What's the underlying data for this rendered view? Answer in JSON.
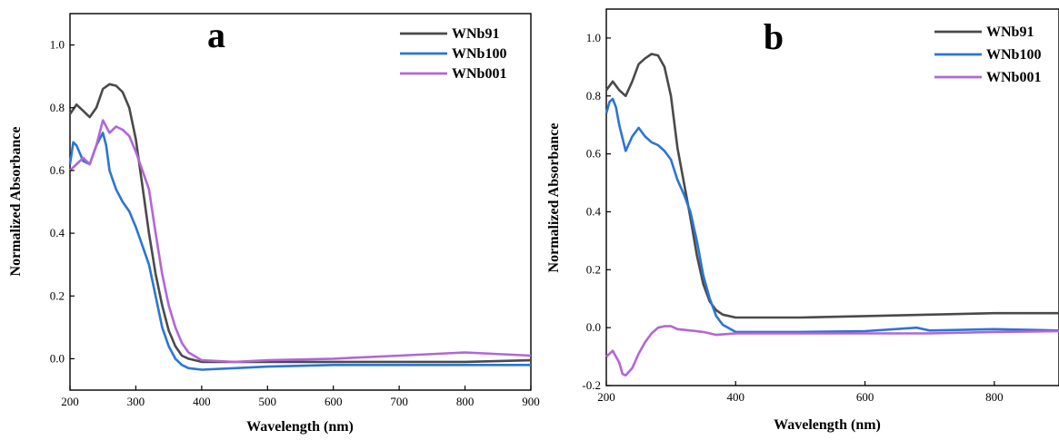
{
  "chart_data": [
    {
      "type": "line",
      "panel_label": "a",
      "xlabel": "Wavelength (nm)",
      "ylabel": "Normalized Absorbance",
      "xlim": [
        200,
        900
      ],
      "ylim": [
        -0.1,
        1.1
      ],
      "xticks": [
        200,
        300,
        400,
        500,
        600,
        700,
        800,
        900
      ],
      "yticks": [
        0.0,
        0.2,
        0.4,
        0.6,
        0.8,
        1.0
      ],
      "ytick_labels": [
        "0.0",
        "0.2",
        "0.4",
        "0.6",
        "0.8",
        "1.0"
      ],
      "grid": false,
      "legend_position": "top-right",
      "series": [
        {
          "name": "WNb91",
          "color": "#4a4a4a",
          "x": [
            200,
            210,
            220,
            230,
            240,
            250,
            260,
            270,
            280,
            290,
            300,
            310,
            320,
            330,
            340,
            350,
            360,
            370,
            380,
            400,
            450,
            500,
            600,
            700,
            800,
            900
          ],
          "y": [
            0.78,
            0.81,
            0.79,
            0.77,
            0.8,
            0.86,
            0.875,
            0.87,
            0.85,
            0.8,
            0.7,
            0.55,
            0.4,
            0.27,
            0.17,
            0.09,
            0.04,
            0.01,
            0.0,
            -0.01,
            -0.01,
            -0.01,
            -0.01,
            -0.01,
            -0.01,
            -0.005
          ]
        },
        {
          "name": "WNb100",
          "color": "#2a75d6",
          "x": [
            200,
            205,
            210,
            220,
            230,
            240,
            250,
            255,
            260,
            270,
            280,
            290,
            300,
            310,
            320,
            330,
            340,
            350,
            360,
            370,
            380,
            400,
            450,
            500,
            600,
            700,
            800,
            900
          ],
          "y": [
            0.62,
            0.69,
            0.68,
            0.63,
            0.62,
            0.68,
            0.72,
            0.68,
            0.6,
            0.54,
            0.5,
            0.47,
            0.42,
            0.36,
            0.3,
            0.2,
            0.1,
            0.04,
            0.0,
            -0.02,
            -0.03,
            -0.035,
            -0.03,
            -0.025,
            -0.02,
            -0.02,
            -0.02,
            -0.02
          ]
        },
        {
          "name": "WNb001",
          "color": "#b266d6",
          "x": [
            200,
            210,
            220,
            230,
            240,
            250,
            260,
            270,
            280,
            290,
            300,
            310,
            320,
            330,
            340,
            350,
            360,
            370,
            380,
            400,
            450,
            500,
            600,
            700,
            800,
            900
          ],
          "y": [
            0.6,
            0.62,
            0.64,
            0.62,
            0.68,
            0.76,
            0.72,
            0.74,
            0.73,
            0.71,
            0.66,
            0.6,
            0.54,
            0.4,
            0.27,
            0.17,
            0.1,
            0.05,
            0.02,
            -0.005,
            -0.01,
            -0.005,
            0.0,
            0.01,
            0.02,
            0.01
          ]
        }
      ]
    },
    {
      "type": "line",
      "panel_label": "b",
      "xlabel": "Wavelength (nm)",
      "ylabel": "Normalized Absorbance",
      "xlim": [
        200,
        900
      ],
      "ylim": [
        -0.2,
        1.1
      ],
      "xticks": [
        200,
        400,
        600,
        800
      ],
      "yticks": [
        -0.2,
        0.0,
        0.2,
        0.4,
        0.6,
        0.8,
        1.0
      ],
      "ytick_labels": [
        "-0.2",
        "0.0",
        "0.2",
        "0.4",
        "0.6",
        "0.8",
        "1.0"
      ],
      "grid": false,
      "legend_position": "top-right",
      "series": [
        {
          "name": "WNb91",
          "color": "#4a4a4a",
          "x": [
            200,
            210,
            220,
            230,
            240,
            250,
            260,
            270,
            280,
            290,
            300,
            310,
            320,
            330,
            340,
            350,
            360,
            370,
            380,
            400,
            450,
            500,
            600,
            700,
            800,
            900
          ],
          "y": [
            0.82,
            0.85,
            0.82,
            0.8,
            0.85,
            0.91,
            0.93,
            0.945,
            0.94,
            0.9,
            0.8,
            0.62,
            0.5,
            0.38,
            0.25,
            0.15,
            0.09,
            0.06,
            0.045,
            0.035,
            0.035,
            0.035,
            0.04,
            0.045,
            0.05,
            0.05
          ]
        },
        {
          "name": "WNb100",
          "color": "#2a75d6",
          "x": [
            200,
            205,
            210,
            215,
            220,
            230,
            240,
            250,
            260,
            270,
            280,
            290,
            300,
            310,
            320,
            330,
            340,
            350,
            360,
            370,
            380,
            400,
            450,
            500,
            600,
            680,
            700,
            800,
            900
          ],
          "y": [
            0.74,
            0.78,
            0.79,
            0.76,
            0.7,
            0.61,
            0.66,
            0.69,
            0.66,
            0.64,
            0.63,
            0.61,
            0.58,
            0.51,
            0.46,
            0.4,
            0.3,
            0.18,
            0.1,
            0.04,
            0.01,
            -0.015,
            -0.015,
            -0.015,
            -0.012,
            0.0,
            -0.01,
            -0.005,
            -0.01
          ]
        },
        {
          "name": "WNb001",
          "color": "#b266d6",
          "x": [
            200,
            210,
            220,
            225,
            230,
            240,
            250,
            260,
            270,
            280,
            290,
            300,
            310,
            330,
            350,
            370,
            400,
            500,
            600,
            700,
            800,
            900
          ],
          "y": [
            -0.1,
            -0.08,
            -0.12,
            -0.16,
            -0.165,
            -0.14,
            -0.09,
            -0.05,
            -0.02,
            0.0,
            0.005,
            0.005,
            -0.005,
            -0.01,
            -0.015,
            -0.025,
            -0.02,
            -0.02,
            -0.02,
            -0.02,
            -0.015,
            -0.012
          ]
        }
      ]
    }
  ]
}
